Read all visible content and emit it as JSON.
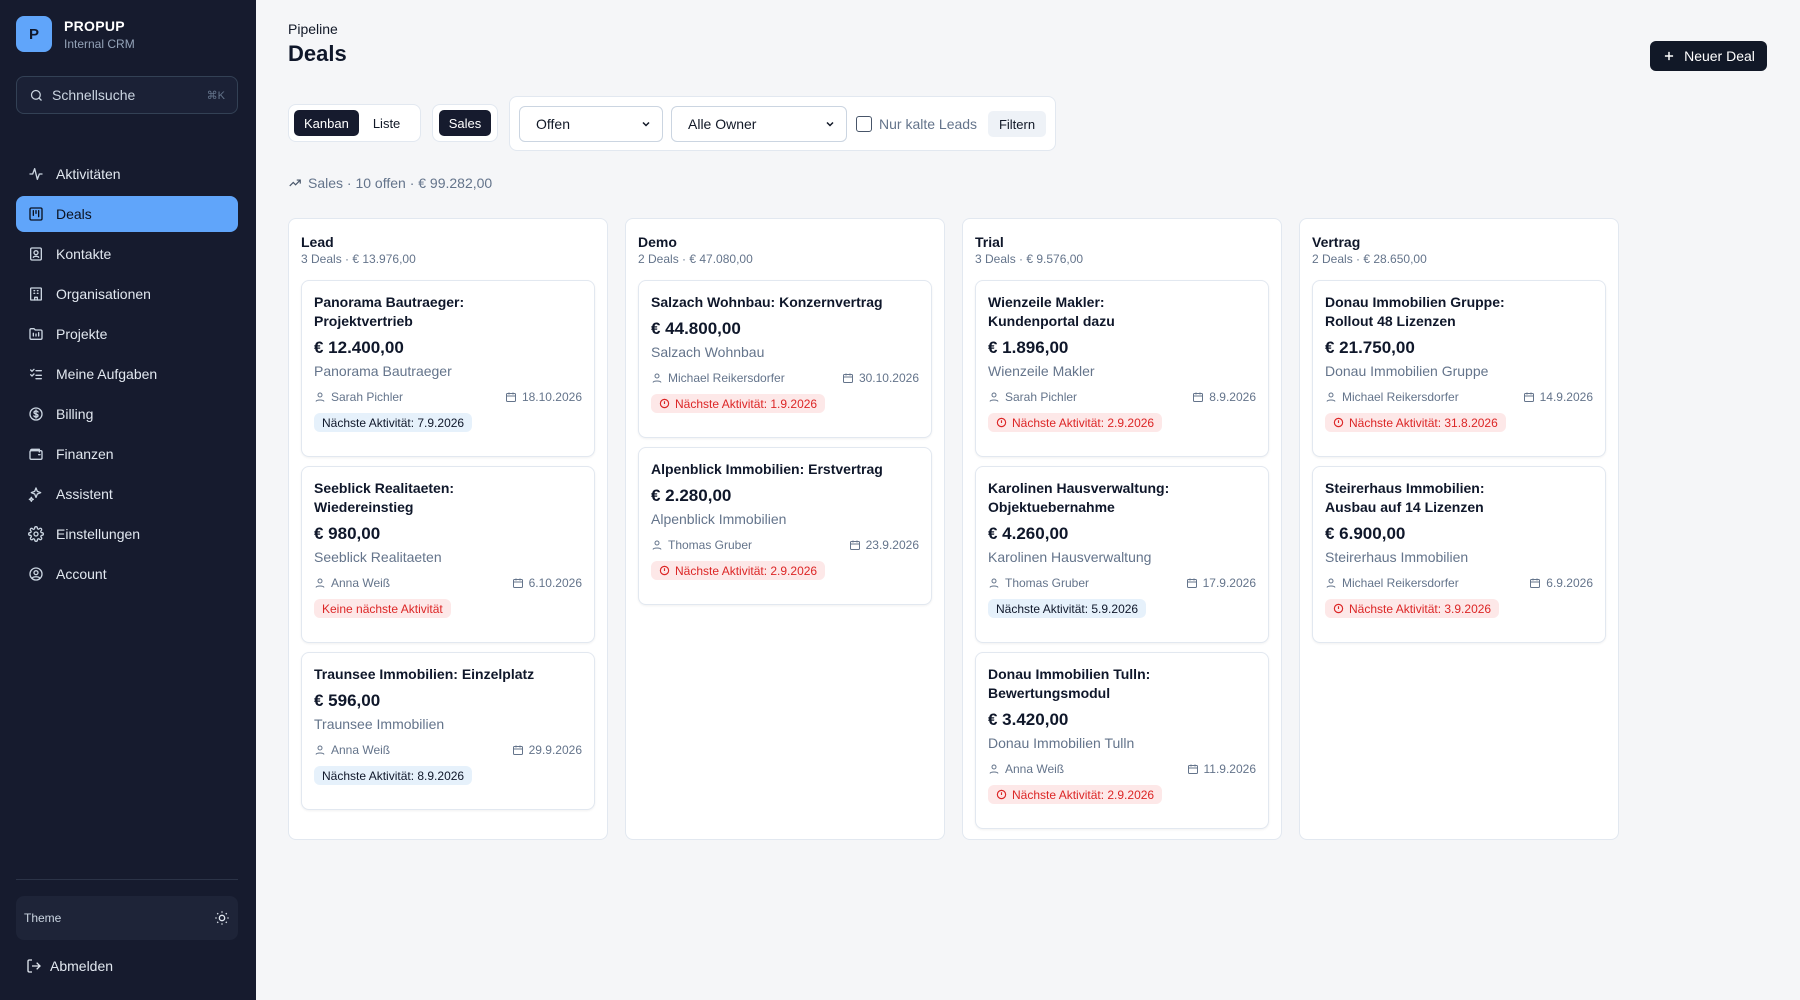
{
  "app": {
    "logo_letter": "P",
    "name": "PROPUP",
    "subtitle": "Internal CRM"
  },
  "search": {
    "placeholder": "Schnellsuche",
    "shortcut": "⌘K"
  },
  "sidebar": {
    "items": [
      {
        "label": "Aktivitäten",
        "icon": "activity-icon",
        "active": false
      },
      {
        "label": "Deals",
        "icon": "kanban-icon",
        "active": true
      },
      {
        "label": "Kontakte",
        "icon": "contact-icon",
        "active": false
      },
      {
        "label": "Organisationen",
        "icon": "building-icon",
        "active": false
      },
      {
        "label": "Projekte",
        "icon": "folder-icon",
        "active": false
      },
      {
        "label": "Meine Aufgaben",
        "icon": "tasks-icon",
        "active": false
      },
      {
        "label": "Billing",
        "icon": "billing-icon",
        "active": false
      },
      {
        "label": "Finanzen",
        "icon": "wallet-icon",
        "active": false
      },
      {
        "label": "Assistent",
        "icon": "sparkles-icon",
        "active": false
      },
      {
        "label": "Einstellungen",
        "icon": "gear-icon",
        "active": false
      },
      {
        "label": "Account",
        "icon": "user-circle-icon",
        "active": false
      }
    ],
    "theme_label": "Theme",
    "logout_label": "Abmelden"
  },
  "header": {
    "breadcrumb": "Pipeline",
    "title": "Deals",
    "new_deal_label": "Neuer Deal"
  },
  "toolbar": {
    "views": [
      "Kanban",
      "Liste"
    ],
    "active_view": "Kanban",
    "pipeline": "Sales",
    "status_select": "Offen",
    "owner_select": "Alle Owner",
    "cold_leads_label": "Nur kalte Leads",
    "filter_label": "Filtern"
  },
  "summary": "Sales · 10 offen · € 99.282,00",
  "colors": {
    "sidebar_bg": "#161b2e",
    "accent": "#60a5fa",
    "danger": "#dc2626",
    "badge_blue": "#e6f1fb",
    "badge_red": "#fde8e8"
  },
  "columns": [
    {
      "title": "Lead",
      "subtitle": "3 Deals · € 13.976,00",
      "cards": [
        {
          "title": "Panorama Bautraeger: Projektvertrieb",
          "value": "€ 12.400,00",
          "org": "Panorama Bautraeger",
          "owner": "Sarah Pichler",
          "date": "18.10.2026",
          "badge": "Nächste Aktivität: 7.9.2026",
          "badge_type": "blue"
        },
        {
          "title": "Seeblick Realitaeten: Wiedereinstieg",
          "value": "€ 980,00",
          "org": "Seeblick Realitaeten",
          "owner": "Anna Weiß",
          "date": "6.10.2026",
          "badge": "Keine nächste Aktivität",
          "badge_type": "red-plain"
        },
        {
          "title": "Traunsee Immobilien: Einzelplatz",
          "value": "€ 596,00",
          "org": "Traunsee Immobilien",
          "owner": "Anna Weiß",
          "date": "29.9.2026",
          "badge": "Nächste Aktivität: 8.9.2026",
          "badge_type": "blue"
        }
      ]
    },
    {
      "title": "Demo",
      "subtitle": "2 Deals · € 47.080,00",
      "cards": [
        {
          "title": "Salzach Wohnbau: Konzernvertrag",
          "value": "€ 44.800,00",
          "org": "Salzach Wohnbau",
          "owner": "Michael Reikersdorfer",
          "date": "30.10.2026",
          "badge": "Nächste Aktivität: 1.9.2026",
          "badge_type": "red"
        },
        {
          "title": "Alpenblick Immobilien: Erstvertrag",
          "value": "€ 2.280,00",
          "org": "Alpenblick Immobilien",
          "owner": "Thomas Gruber",
          "date": "23.9.2026",
          "badge": "Nächste Aktivität: 2.9.2026",
          "badge_type": "red"
        }
      ]
    },
    {
      "title": "Trial",
      "subtitle": "3 Deals · € 9.576,00",
      "cards": [
        {
          "title": "Wienzeile Makler: Kundenportal dazu",
          "value": "€ 1.896,00",
          "org": "Wienzeile Makler",
          "owner": "Sarah Pichler",
          "date": "8.9.2026",
          "badge": "Nächste Aktivität: 2.9.2026",
          "badge_type": "red"
        },
        {
          "title": "Karolinen Hausverwaltung: Objektuebernahme",
          "value": "€ 4.260,00",
          "org": "Karolinen Hausverwaltung",
          "owner": "Thomas Gruber",
          "date": "17.9.2026",
          "badge": "Nächste Aktivität: 5.9.2026",
          "badge_type": "blue"
        },
        {
          "title": "Donau Immobilien Tulln: Bewertungsmodul",
          "value": "€ 3.420,00",
          "org": "Donau Immobilien Tulln",
          "owner": "Anna Weiß",
          "date": "11.9.2026",
          "badge": "Nächste Aktivität: 2.9.2026",
          "badge_type": "red"
        }
      ]
    },
    {
      "title": "Vertrag",
      "subtitle": "2 Deals · € 28.650,00",
      "cards": [
        {
          "title": "Donau Immobilien Gruppe: Rollout 48 Lizenzen",
          "value": "€ 21.750,00",
          "org": "Donau Immobilien Gruppe",
          "owner": "Michael Reikersdorfer",
          "date": "14.9.2026",
          "badge": "Nächste Aktivität: 31.8.2026",
          "badge_type": "red"
        },
        {
          "title": "Steirerhaus Immobilien: Ausbau auf 14 Lizenzen",
          "value": "€ 6.900,00",
          "org": "Steirerhaus Immobilien",
          "owner": "Michael Reikersdorfer",
          "date": "6.9.2026",
          "badge": "Nächste Aktivität: 3.9.2026",
          "badge_type": "red"
        }
      ]
    }
  ]
}
